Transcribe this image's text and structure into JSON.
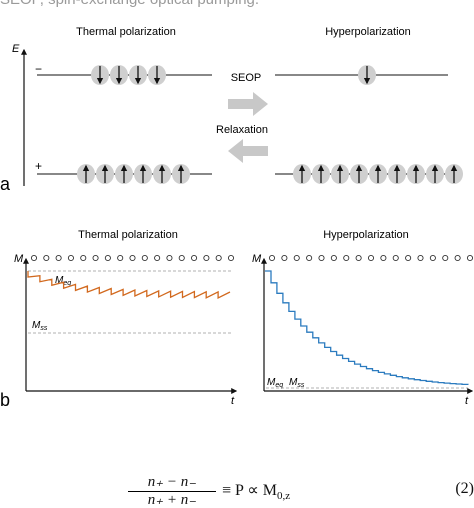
{
  "caption": "SEOP, spin-exchange optical pumping.",
  "panel_a": {
    "label": "a",
    "left_title": "Thermal polarization",
    "right_title": "Hyperpolarization",
    "energy_axis_label": "E",
    "minus_label": "−",
    "plus_label": "+",
    "seop_label": "SEOP",
    "relaxation_label": "Relaxation",
    "thermal_upper_spins": [
      "down",
      "down",
      "down",
      "down"
    ],
    "thermal_lower_spins": [
      "up",
      "up",
      "up",
      "up",
      "up",
      "up"
    ],
    "hyper_upper_spins": [
      "down"
    ],
    "hyper_lower_spins": [
      "up",
      "up",
      "up",
      "up",
      "up",
      "up",
      "up",
      "up",
      "up"
    ]
  },
  "panel_b": {
    "label": "b",
    "left_title": "Thermal polarization",
    "right_title": "Hyperpolarization",
    "left_y_label": "M",
    "right_y_label": "M",
    "x_label": "t",
    "left_meq_label": "M",
    "left_meq_sub": "eq",
    "left_mss_label": "M",
    "left_mss_sub": "ss",
    "right_meq_label": "M",
    "right_meq_sub": "eq",
    "right_mss_label": "M",
    "right_mss_sub": "ss",
    "pulse_markers": 17,
    "left_curve_color": "#d2691e",
    "right_curve_color": "#2b7bbf"
  },
  "equation": {
    "numerator": "n₊ − n₋",
    "denominator": "n₊ + n₋",
    "rhs": "≡ P ∝ M",
    "rhs_sub": "0,z",
    "number": "(2)"
  }
}
